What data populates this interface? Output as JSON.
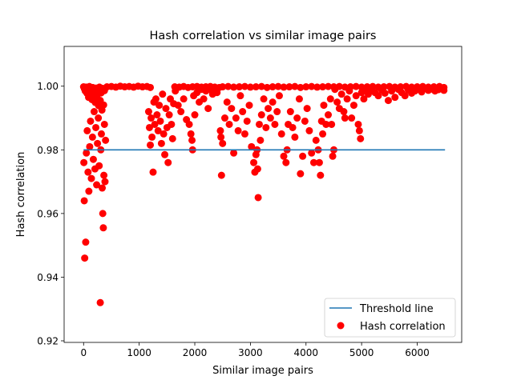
{
  "chart_data": {
    "type": "scatter",
    "title": "Hash correlation vs similar image pairs",
    "xlabel": "Similar image pairs",
    "ylabel": "Hash correlation",
    "xlim": [
      -350,
      6800
    ],
    "ylim": [
      0.9195,
      1.0125
    ],
    "x_ticks": [
      0,
      1000,
      2000,
      3000,
      4000,
      5000,
      6000
    ],
    "x_tick_labels": [
      "0",
      "1000",
      "2000",
      "3000",
      "4000",
      "5000",
      "6000"
    ],
    "y_ticks": [
      0.92,
      0.94,
      0.96,
      0.98,
      1.0
    ],
    "y_tick_labels": [
      "0.92",
      "0.94",
      "0.96",
      "0.98",
      "1.00"
    ],
    "grid": false,
    "legend_position": "lower-right",
    "legend": [
      {
        "label": "Threshold line",
        "marker": "line",
        "color": "#1f77b4"
      },
      {
        "label": "Hash correlation",
        "marker": "dot",
        "color": "#ff0000"
      }
    ],
    "series": [
      {
        "name": "Threshold line",
        "kind": "line",
        "color": "#1f77b4",
        "points": [
          [
            0,
            0.98
          ],
          [
            6500,
            0.98
          ]
        ]
      },
      {
        "name": "Hash correlation",
        "kind": "scatter",
        "color": "#ff0000",
        "points": [
          [
            0,
            0.9998
          ],
          [
            15,
            0.9992
          ],
          [
            30,
            0.9985
          ],
          [
            45,
            0.9997
          ],
          [
            60,
            0.9978
          ],
          [
            75,
            0.999
          ],
          [
            90,
            0.9965
          ],
          [
            105,
            0.9999
          ],
          [
            120,
            0.9983
          ],
          [
            135,
            0.9991
          ],
          [
            150,
            0.9958
          ],
          [
            165,
            0.9996
          ],
          [
            180,
            0.9972
          ],
          [
            195,
            0.9988
          ],
          [
            210,
            0.9949
          ],
          [
            225,
            0.9994
          ],
          [
            240,
            0.9967
          ],
          [
            255,
            0.9981
          ],
          [
            270,
            0.9939
          ],
          [
            285,
            0.9997
          ],
          [
            300,
            0.9955
          ],
          [
            315,
            0.9979
          ],
          [
            330,
            0.9925
          ],
          [
            345,
            0.9993
          ],
          [
            360,
            0.9941
          ],
          [
            375,
            0.9986
          ],
          [
            5,
            0.976
          ],
          [
            12,
            0.964
          ],
          [
            20,
            0.946
          ],
          [
            38,
            0.951
          ],
          [
            50,
            0.979
          ],
          [
            65,
            0.986
          ],
          [
            80,
            0.973
          ],
          [
            95,
            0.967
          ],
          [
            110,
            0.981
          ],
          [
            125,
            0.989
          ],
          [
            140,
            0.971
          ],
          [
            160,
            0.984
          ],
          [
            175,
            0.977
          ],
          [
            190,
            0.992
          ],
          [
            205,
            0.974
          ],
          [
            220,
            0.987
          ],
          [
            235,
            0.969
          ],
          [
            250,
            0.982
          ],
          [
            265,
            0.99
          ],
          [
            280,
            0.975
          ],
          [
            300,
            0.932
          ],
          [
            310,
            0.98
          ],
          [
            320,
            0.985
          ],
          [
            335,
            0.968
          ],
          [
            345,
            0.96
          ],
          [
            355,
            0.9555
          ],
          [
            365,
            0.972
          ],
          [
            375,
            0.988
          ],
          [
            385,
            0.97
          ],
          [
            395,
            0.983
          ],
          [
            420,
            0.9998
          ],
          [
            500,
            0.9999
          ],
          [
            580,
            0.9997
          ],
          [
            660,
            1.0
          ],
          [
            740,
            0.9998
          ],
          [
            820,
            0.9999
          ],
          [
            900,
            0.9997
          ],
          [
            980,
            1.0
          ],
          [
            1060,
            0.9998
          ],
          [
            1140,
            0.9999
          ],
          [
            1200,
            0.9996
          ],
          [
            1170,
            0.992
          ],
          [
            1185,
            0.987
          ],
          [
            1200,
            0.9815
          ],
          [
            1215,
            0.99
          ],
          [
            1230,
            0.984
          ],
          [
            1250,
            0.973
          ],
          [
            1265,
            0.995
          ],
          [
            1280,
            0.988
          ],
          [
            1300,
            0.996
          ],
          [
            1320,
            0.991
          ],
          [
            1340,
            0.986
          ],
          [
            1360,
            0.994
          ],
          [
            1380,
            0.989
          ],
          [
            1400,
            0.982
          ],
          [
            1420,
            0.9975
          ],
          [
            1440,
            0.985
          ],
          [
            1460,
            0.9785
          ],
          [
            1480,
            0.993
          ],
          [
            1500,
            0.987
          ],
          [
            1520,
            0.976
          ],
          [
            1540,
            0.991
          ],
          [
            1560,
            0.996
          ],
          [
            1580,
            0.988
          ],
          [
            1600,
            0.9835
          ],
          [
            1620,
            0.9945
          ],
          [
            1650,
            0.9985
          ],
          [
            1700,
            0.994
          ],
          [
            1750,
            0.992
          ],
          [
            1800,
            0.996
          ],
          [
            1850,
            0.9895
          ],
          [
            1900,
            0.988
          ],
          [
            1930,
            0.985
          ],
          [
            1950,
            0.983
          ],
          [
            1960,
            0.98
          ],
          [
            1980,
            0.997
          ],
          [
            2000,
            0.991
          ],
          [
            2040,
            0.998
          ],
          [
            2080,
            0.995
          ],
          [
            2120,
            0.999
          ],
          [
            2160,
            0.996
          ],
          [
            2200,
            0.9985
          ],
          [
            2240,
            0.993
          ],
          [
            2280,
            0.999
          ],
          [
            2320,
            0.9975
          ],
          [
            2360,
            0.9995
          ],
          [
            2400,
            0.998
          ],
          [
            1640,
            0.9998
          ],
          [
            1720,
            0.9997
          ],
          [
            1800,
            0.9999
          ],
          [
            1880,
            0.9996
          ],
          [
            1960,
            0.9998
          ],
          [
            2040,
            0.9999
          ],
          [
            2120,
            0.9997
          ],
          [
            2200,
            0.9998
          ],
          [
            2280,
            0.9999
          ],
          [
            2360,
            0.9997
          ],
          [
            2440,
            0.9996
          ],
          [
            2460,
            0.986
          ],
          [
            2470,
            0.984
          ],
          [
            2480,
            0.972
          ],
          [
            2500,
            0.982
          ],
          [
            2540,
            0.99
          ],
          [
            2580,
            0.995
          ],
          [
            2620,
            0.988
          ],
          [
            2660,
            0.993
          ],
          [
            2700,
            0.979
          ],
          [
            2740,
            0.99
          ],
          [
            2780,
            0.986
          ],
          [
            2820,
            0.997
          ],
          [
            2860,
            0.992
          ],
          [
            2900,
            0.985
          ],
          [
            2940,
            0.989
          ],
          [
            2980,
            0.994
          ],
          [
            3020,
            0.981
          ],
          [
            3060,
            0.976
          ],
          [
            3080,
            0.973
          ],
          [
            3100,
            0.9785
          ],
          [
            3120,
            0.98
          ],
          [
            3130,
            0.974
          ],
          [
            3140,
            0.965
          ],
          [
            3160,
            0.988
          ],
          [
            3180,
            0.983
          ],
          [
            3200,
            0.991
          ],
          [
            3240,
            0.996
          ],
          [
            3280,
            0.987
          ],
          [
            3320,
            0.993
          ],
          [
            3360,
            0.99
          ],
          [
            3400,
            0.995
          ],
          [
            3440,
            0.988
          ],
          [
            3480,
            0.992
          ],
          [
            3520,
            0.997
          ],
          [
            3560,
            0.985
          ],
          [
            3600,
            0.978
          ],
          [
            3640,
            0.976
          ],
          [
            3660,
            0.98
          ],
          [
            3680,
            0.988
          ],
          [
            3720,
            0.992
          ],
          [
            3760,
            0.987
          ],
          [
            3800,
            0.984
          ],
          [
            3840,
            0.99
          ],
          [
            3880,
            0.996
          ],
          [
            3900,
            0.9725
          ],
          [
            3940,
            0.978
          ],
          [
            3980,
            0.989
          ],
          [
            4020,
            0.993
          ],
          [
            4060,
            0.986
          ],
          [
            4100,
            0.979
          ],
          [
            4140,
            0.976
          ],
          [
            4180,
            0.983
          ],
          [
            4220,
            0.98
          ],
          [
            4240,
            0.976
          ],
          [
            4260,
            0.972
          ],
          [
            4280,
            0.989
          ],
          [
            4300,
            0.985
          ],
          [
            4320,
            0.994
          ],
          [
            4360,
            0.988
          ],
          [
            4400,
            0.991
          ],
          [
            4440,
            0.996
          ],
          [
            2500,
            0.9998
          ],
          [
            2600,
            0.9999
          ],
          [
            2700,
            0.9997
          ],
          [
            2800,
            0.9998
          ],
          [
            2900,
            0.9999
          ],
          [
            3000,
            0.9997
          ],
          [
            3100,
            0.9998
          ],
          [
            3200,
            0.9999
          ],
          [
            3300,
            0.9996
          ],
          [
            3400,
            0.9998
          ],
          [
            3500,
            0.9999
          ],
          [
            3600,
            0.9997
          ],
          [
            3700,
            0.9998
          ],
          [
            3800,
            0.9999
          ],
          [
            3900,
            0.9996
          ],
          [
            4000,
            0.9998
          ],
          [
            4100,
            0.9999
          ],
          [
            4200,
            0.9997
          ],
          [
            4300,
            0.9998
          ],
          [
            4400,
            0.9999
          ],
          [
            4460,
            0.988
          ],
          [
            4480,
            0.978
          ],
          [
            4500,
            0.98
          ],
          [
            4520,
            0.999
          ],
          [
            4560,
            0.995
          ],
          [
            4600,
            0.993
          ],
          [
            4640,
            0.9975
          ],
          [
            4680,
            0.992
          ],
          [
            4700,
            0.99
          ],
          [
            4740,
            0.996
          ],
          [
            4780,
            0.9985
          ],
          [
            4820,
            0.99
          ],
          [
            4860,
            0.994
          ],
          [
            4900,
            0.997
          ],
          [
            4940,
            0.988
          ],
          [
            4960,
            0.986
          ],
          [
            4980,
            0.9835
          ],
          [
            5000,
            0.998
          ],
          [
            5040,
            0.996
          ],
          [
            4500,
            0.9998
          ],
          [
            4600,
            0.9999
          ],
          [
            4700,
            0.9997
          ],
          [
            4800,
            0.9998
          ],
          [
            4900,
            0.9999
          ],
          [
            5000,
            0.9997
          ],
          [
            5100,
            0.9998
          ],
          [
            5200,
            0.9999
          ],
          [
            5300,
            0.9997
          ],
          [
            5400,
            0.9998
          ],
          [
            5500,
            0.9999
          ],
          [
            5600,
            0.9997
          ],
          [
            5700,
            0.9998
          ],
          [
            5800,
            0.9999
          ],
          [
            5900,
            0.9997
          ],
          [
            6000,
            0.9998
          ],
          [
            6100,
            0.9999
          ],
          [
            6200,
            0.9997
          ],
          [
            6300,
            0.9998
          ],
          [
            6400,
            0.9999
          ],
          [
            6480,
            0.9996
          ],
          [
            5060,
            0.9985
          ],
          [
            5120,
            0.9975
          ],
          [
            5180,
            0.999
          ],
          [
            5240,
            0.998
          ],
          [
            5300,
            0.997
          ],
          [
            5360,
            0.9988
          ],
          [
            5420,
            0.9978
          ],
          [
            5480,
            0.9955
          ],
          [
            5540,
            0.9985
          ],
          [
            5600,
            0.9965
          ],
          [
            5660,
            0.999
          ],
          [
            5720,
            0.998
          ],
          [
            5780,
            0.997
          ],
          [
            5840,
            0.9988
          ],
          [
            5900,
            0.9978
          ],
          [
            5960,
            0.9985
          ],
          [
            6020,
            0.999
          ],
          [
            6080,
            0.9982
          ],
          [
            6140,
            0.9993
          ],
          [
            6200,
            0.9987
          ],
          [
            6260,
            0.9991
          ],
          [
            6320,
            0.9985
          ],
          [
            6380,
            0.9989
          ],
          [
            6440,
            0.9992
          ],
          [
            6480,
            0.9987
          ]
        ]
      }
    ]
  }
}
